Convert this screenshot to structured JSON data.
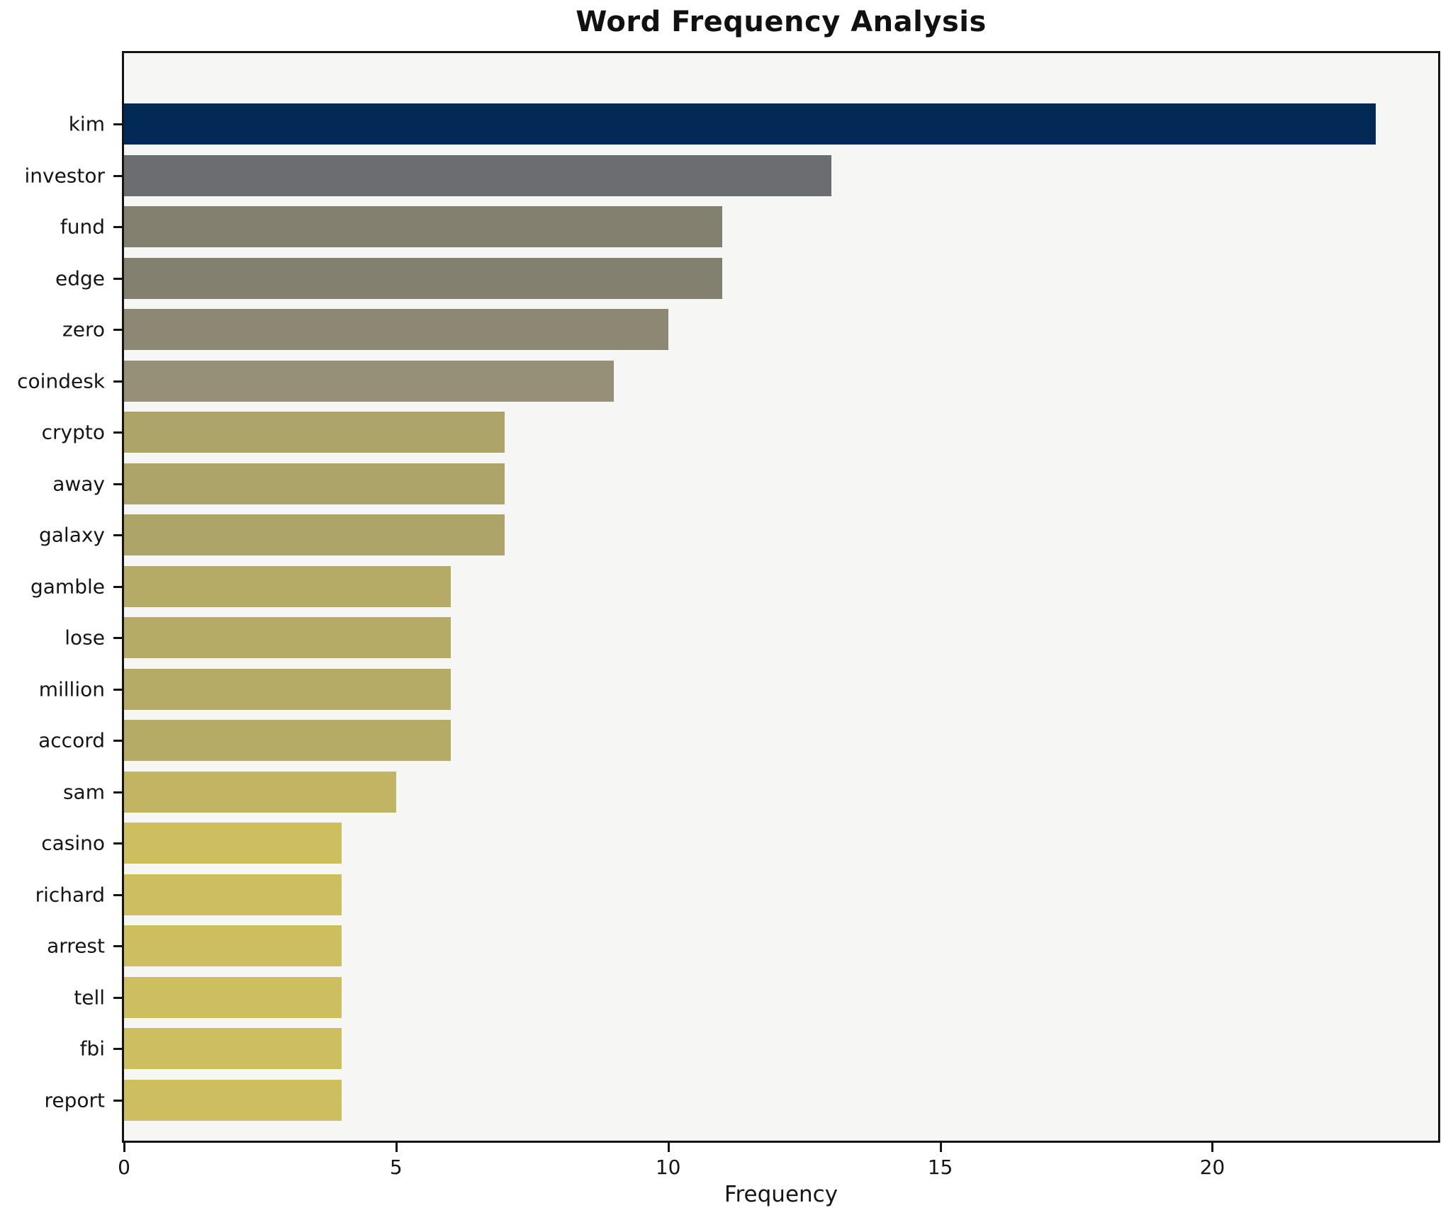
{
  "chart_data": {
    "type": "bar",
    "orientation": "horizontal",
    "title": "Word Frequency Analysis",
    "xlabel": "Frequency",
    "categories": [
      "kim",
      "investor",
      "fund",
      "edge",
      "zero",
      "coindesk",
      "crypto",
      "away",
      "galaxy",
      "gamble",
      "lose",
      "million",
      "accord",
      "sam",
      "casino",
      "richard",
      "arrest",
      "tell",
      "fbi",
      "report"
    ],
    "values": [
      23,
      13,
      11,
      11,
      10,
      9,
      7,
      7,
      7,
      6,
      6,
      6,
      6,
      5,
      4,
      4,
      4,
      4,
      4,
      4
    ],
    "bar_colors": [
      "#032a57",
      "#6b6d71",
      "#83806f",
      "#83806f",
      "#8c8873",
      "#969079",
      "#aca468",
      "#aca468",
      "#aca468",
      "#b5ab66",
      "#b5ab66",
      "#b5ab66",
      "#b5ab66",
      "#c1b463",
      "#cdbf60",
      "#cdbf60",
      "#cdbf60",
      "#cdbf60",
      "#cdbf60",
      "#cdbf60"
    ],
    "x_ticks": [
      0,
      5,
      10,
      15,
      20
    ],
    "xlim": [
      0,
      24.15
    ],
    "grid": false,
    "legend": false,
    "plot_background": "#f6f6f4",
    "figure_background": "#ffffff",
    "spine_color": "#141414",
    "text_color": "#151515"
  }
}
